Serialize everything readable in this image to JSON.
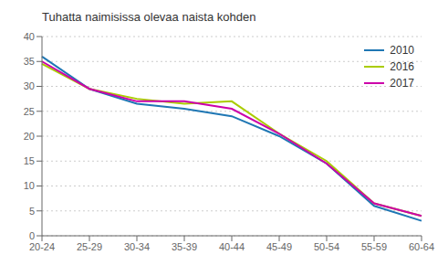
{
  "chart_data": {
    "type": "line",
    "title": "Tuhatta naimisissa olevaa naista kohden",
    "categories": [
      "20-24",
      "25-29",
      "30-34",
      "35-39",
      "40-44",
      "45-49",
      "50-54",
      "55-59",
      "60-64"
    ],
    "series": [
      {
        "name": "2010",
        "color": "#1F77B4",
        "values": [
          36.0,
          29.5,
          26.5,
          25.5,
          24.0,
          20.0,
          14.5,
          6.0,
          3.0
        ]
      },
      {
        "name": "2016",
        "color": "#AACC00",
        "values": [
          34.5,
          29.5,
          27.5,
          26.5,
          27.0,
          20.5,
          15.0,
          6.5,
          4.0
        ]
      },
      {
        "name": "2017",
        "color": "#CC00AA",
        "values": [
          35.0,
          29.5,
          27.0,
          27.0,
          25.5,
          20.5,
          14.5,
          6.5,
          4.0
        ]
      }
    ],
    "ylim": [
      0,
      40
    ],
    "yticks": [
      0,
      5,
      10,
      15,
      20,
      25,
      30,
      35,
      40
    ],
    "grid": true,
    "legend": "upper right"
  }
}
